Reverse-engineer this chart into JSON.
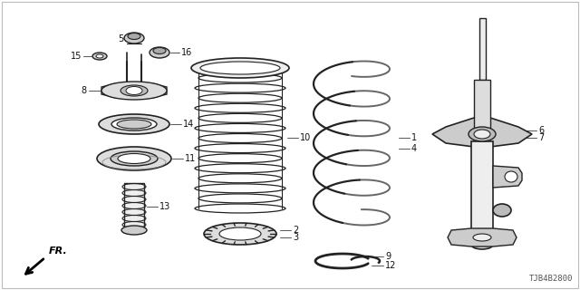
{
  "background_color": "#ffffff",
  "line_color": "#222222",
  "diagram_code": "TJB4B2800",
  "figsize": [
    6.4,
    3.2
  ],
  "dpi": 100
}
